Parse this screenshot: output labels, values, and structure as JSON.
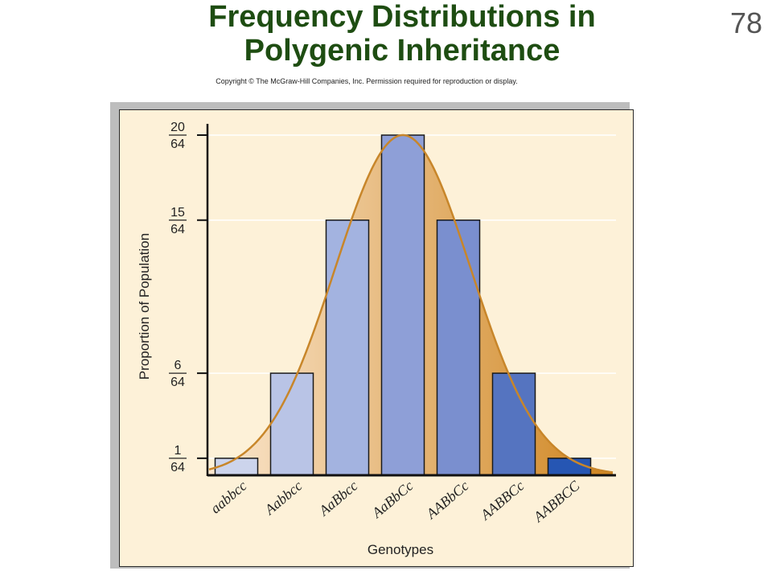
{
  "slide": {
    "title_line1": "Frequency Distributions in",
    "title_line2": "Polygenic Inheritance",
    "number": "78",
    "copyright": "Copyright © The McGraw-Hill Companies, Inc. Permission required for reproduction or display."
  },
  "chart_data": {
    "type": "bar",
    "title": "",
    "xlabel": "Genotypes",
    "ylabel": "Proportion of Population",
    "categories": [
      "aabbcc",
      "Aabbcc",
      "AaBbcc",
      "AaBbCc",
      "AABbCc",
      "AABBCc",
      "AABBCC"
    ],
    "values": [
      1,
      6,
      15,
      20,
      15,
      6,
      1
    ],
    "denominator": 64,
    "ylim": [
      0,
      20
    ],
    "yticks": [
      {
        "num": "20",
        "den": "64",
        "value": 20
      },
      {
        "num": "15",
        "den": "64",
        "value": 15
      },
      {
        "num": "6",
        "den": "64",
        "value": 6
      },
      {
        "num": "1",
        "den": "64",
        "value": 1
      }
    ],
    "grid": true,
    "overlay": "normal-curve",
    "colors": {
      "panel_bg": "#fdf1d8",
      "curve": "#c8862a",
      "curve_fill_light": "#fbe7cf",
      "curve_fill_dark": "#cf851f",
      "bar_edge": "#1a1a1a",
      "bars": [
        "#ccd4ec",
        "#b9c4e6",
        "#a3b3e0",
        "#8e9fd7",
        "#7a8fcf",
        "#5574c0",
        "#2656b3"
      ]
    }
  }
}
